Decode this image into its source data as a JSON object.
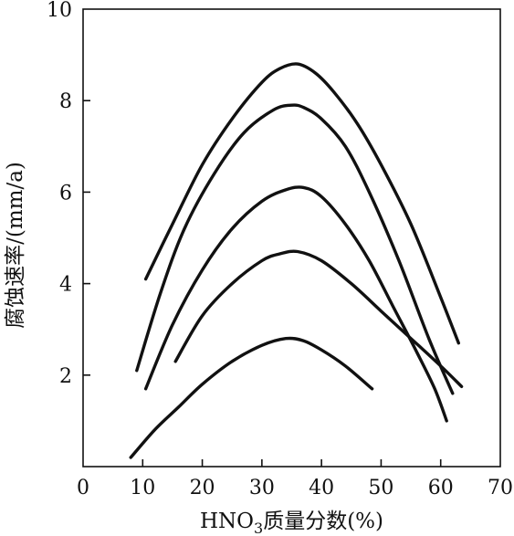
{
  "chart_data": {
    "type": "line",
    "title": "",
    "xlabel": "HNO₃质量分数(%)",
    "ylabel": "腐蚀速率/(mm/a)",
    "xlim": [
      0,
      70
    ],
    "ylim": [
      0,
      10
    ],
    "x_ticks": [
      0,
      10,
      20,
      30,
      40,
      50,
      60,
      70
    ],
    "y_ticks": [
      2,
      4,
      6,
      8,
      10
    ],
    "grid": false,
    "legend": "none",
    "series": [
      {
        "x": [
          10.5,
          15,
          20,
          25,
          30,
          33,
          36,
          39,
          42,
          46,
          50,
          55,
          60,
          63
        ],
        "values": [
          4.1,
          5.3,
          6.6,
          7.6,
          8.4,
          8.7,
          8.8,
          8.6,
          8.2,
          7.5,
          6.6,
          5.3,
          3.7,
          2.7
        ]
      },
      {
        "x": [
          9,
          13,
          17,
          22,
          27,
          32,
          35,
          37,
          40,
          44,
          48,
          53,
          58,
          62
        ],
        "values": [
          2.1,
          3.8,
          5.2,
          6.4,
          7.3,
          7.8,
          7.9,
          7.85,
          7.6,
          7.0,
          6.0,
          4.5,
          2.8,
          1.6
        ]
      },
      {
        "x": [
          10.5,
          15,
          20,
          25,
          30,
          34,
          37,
          40,
          44,
          48,
          52,
          56,
          59,
          61
        ],
        "values": [
          1.7,
          3.1,
          4.3,
          5.2,
          5.8,
          6.05,
          6.1,
          5.9,
          5.3,
          4.5,
          3.5,
          2.5,
          1.7,
          1.0
        ]
      },
      {
        "x": [
          15.5,
          20,
          25,
          30,
          33,
          36,
          40,
          45,
          50,
          55,
          60,
          63.5
        ],
        "values": [
          2.3,
          3.3,
          4.0,
          4.5,
          4.65,
          4.7,
          4.5,
          4.0,
          3.4,
          2.8,
          2.2,
          1.75
        ]
      },
      {
        "x": [
          8,
          12,
          16,
          20,
          25,
          30,
          34,
          37,
          40,
          44,
          48.5
        ],
        "values": [
          0.2,
          0.8,
          1.3,
          1.8,
          2.3,
          2.65,
          2.8,
          2.75,
          2.55,
          2.2,
          1.7
        ]
      }
    ]
  }
}
